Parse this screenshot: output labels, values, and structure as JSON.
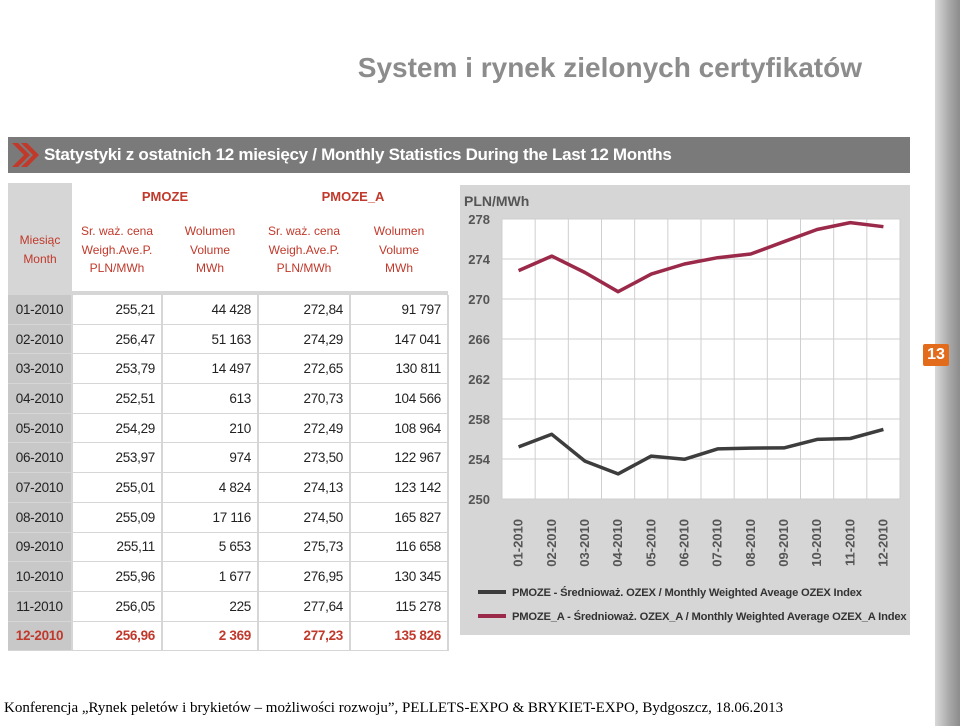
{
  "slide": {
    "title": "System i rynek zielonych certyfikatów",
    "banner": "Statystyki z ostatnich 12 miesięcy / Monthly Statistics During the Last 12 Months",
    "page_number": "13",
    "footer": "Konferencja „Rynek peletów i brykietów – możliwości rozwoju”,  PELLETS-EXPO & BRYKIET-EXPO, Bydgoszcz, 18.06.2013"
  },
  "table": {
    "group_pmoze": "PMOZE",
    "group_pmoze_a": "PMOZE_A",
    "month_header": [
      "Miesiąc",
      "Month"
    ],
    "price_header": [
      "Sr. waż. cena",
      "Weigh.Ave.P.",
      "PLN/MWh"
    ],
    "volume_header": [
      "Wolumen",
      "Volume",
      "MWh"
    ],
    "rows": [
      {
        "month": "01-2010",
        "p1": "255,21",
        "v1": "44 428",
        "p2": "272,84",
        "v2": "91 797"
      },
      {
        "month": "02-2010",
        "p1": "256,47",
        "v1": "51 163",
        "p2": "274,29",
        "v2": "147 041"
      },
      {
        "month": "03-2010",
        "p1": "253,79",
        "v1": "14 497",
        "p2": "272,65",
        "v2": "130 811"
      },
      {
        "month": "04-2010",
        "p1": "252,51",
        "v1": "613",
        "p2": "270,73",
        "v2": "104 566"
      },
      {
        "month": "05-2010",
        "p1": "254,29",
        "v1": "210",
        "p2": "272,49",
        "v2": "108 964"
      },
      {
        "month": "06-2010",
        "p1": "253,97",
        "v1": "974",
        "p2": "273,50",
        "v2": "122 967"
      },
      {
        "month": "07-2010",
        "p1": "255,01",
        "v1": "4 824",
        "p2": "274,13",
        "v2": "123 142"
      },
      {
        "month": "08-2010",
        "p1": "255,09",
        "v1": "17 116",
        "p2": "274,50",
        "v2": "165 827"
      },
      {
        "month": "09-2010",
        "p1": "255,11",
        "v1": "5 653",
        "p2": "275,73",
        "v2": "116 658"
      },
      {
        "month": "10-2010",
        "p1": "255,96",
        "v1": "1 677",
        "p2": "276,95",
        "v2": "130 345"
      },
      {
        "month": "11-2010",
        "p1": "256,05",
        "v1": "225",
        "p2": "277,64",
        "v2": "115 278"
      },
      {
        "month": "12-2010",
        "p1": "256,96",
        "v1": "2 369",
        "p2": "277,23",
        "v2": "135 826"
      }
    ]
  },
  "chart_data": {
    "type": "line",
    "ylabel": "PLN/MWh",
    "ylim": [
      250,
      278
    ],
    "yticks": [
      250,
      254,
      258,
      262,
      266,
      270,
      274,
      278
    ],
    "categories": [
      "01-2010",
      "02-2010",
      "03-2010",
      "04-2010",
      "05-2010",
      "06-2010",
      "07-2010",
      "08-2010",
      "09-2010",
      "10-2010",
      "11-2010",
      "12-2010"
    ],
    "grid": true,
    "legend_position": "bottom",
    "series": [
      {
        "name": "PMOZE - Średnioważ. OZEX / Monthly Weighted Aveage OZEX Index",
        "color": "#3d3d3d",
        "values": [
          255.21,
          256.47,
          253.79,
          252.51,
          254.29,
          253.97,
          255.01,
          255.09,
          255.11,
          255.96,
          256.05,
          256.96
        ]
      },
      {
        "name": "PMOZE_A - Średnioważ. OZEX_A / Monthly Weighted Average OZEX_A Index",
        "color": "#9b2a4a",
        "values": [
          272.84,
          274.29,
          272.65,
          270.73,
          272.49,
          273.5,
          274.13,
          274.5,
          275.73,
          276.95,
          277.64,
          277.23
        ]
      }
    ]
  }
}
